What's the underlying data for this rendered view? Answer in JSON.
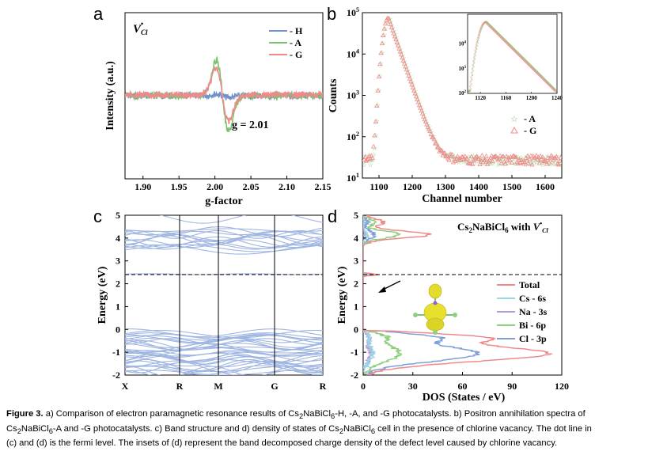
{
  "panels": {
    "a": {
      "letter": "a",
      "annotation": "V",
      "annotation_sup": "•",
      "annotation_sub": "Cl",
      "g_label": "g = 2.01",
      "chart_data": {
        "type": "line",
        "xlabel": "g-factor",
        "ylabel": "Intensity (a.u.)",
        "xlim": [
          1.875,
          2.15
        ],
        "xticks": [
          "1.90",
          "1.95",
          "2.00",
          "2.05",
          "2.10",
          "2.15"
        ],
        "legend_placement": "top-right",
        "series": [
          {
            "name": "- H",
            "color": "#6f93c9",
            "amplitude": 0.05
          },
          {
            "name": "- A",
            "color": "#7cc36f",
            "amplitude": 1.0
          },
          {
            "name": "- G",
            "color": "#f08a8a",
            "amplitude": 0.75
          }
        ],
        "signal_center_g": 2.01
      }
    },
    "b": {
      "letter": "b",
      "chart_data": {
        "type": "scatter",
        "xlabel": "Channel number",
        "ylabel": "Counts",
        "xlim": [
          1050,
          1650
        ],
        "ylim": [
          10,
          100000
        ],
        "yscale": "log",
        "xticks": [
          "1100",
          "1200",
          "1300",
          "1400",
          "1500",
          "1600"
        ],
        "yticks": [
          "10^1",
          "10^2",
          "10^3",
          "10^4",
          "10^5"
        ],
        "peak_channel": 1128,
        "peak_counts": 75000,
        "legend_placement": "bottom-right",
        "series": [
          {
            "name": "- A",
            "marker": "star",
            "color": "#7cc36f"
          },
          {
            "name": "- G",
            "marker": "triangle",
            "color": "#f08a8a"
          }
        ],
        "inset": {
          "xlim": [
            1100,
            1240
          ],
          "xticks": [
            "1120",
            "1160",
            "1200",
            "1240"
          ],
          "yticks": [
            "10^2",
            "10^3",
            "10^4"
          ]
        }
      }
    },
    "c": {
      "letter": "c",
      "chart_data": {
        "type": "line",
        "ylabel": "Energy (eV)",
        "ylim": [
          -2,
          5
        ],
        "yticks": [
          "-2",
          "-1",
          "0",
          "1",
          "2",
          "3",
          "4",
          "5"
        ],
        "kpoints": [
          "X",
          "R",
          "M",
          "G",
          "R"
        ],
        "fermi_level": 2.4,
        "band_color": "#9fb5e2",
        "valence_range": [
          -2,
          -0.1
        ],
        "conduction_range": [
          3.4,
          4.35
        ],
        "defect_level": 2.42
      }
    },
    "d": {
      "letter": "d",
      "title_main": "Cs",
      "title_sub1": "2",
      "title_mid": "NaBiCl",
      "title_sub2": "6",
      "title_with": " with ",
      "title_v": "V",
      "title_sup": "•",
      "title_sub": "Cl",
      "chart_data": {
        "type": "line",
        "xlabel": "DOS (States / eV)",
        "ylabel": "Energy (eV)",
        "xlim": [
          0,
          120
        ],
        "ylim": [
          -2,
          5
        ],
        "xticks": [
          "0",
          "30",
          "60",
          "90",
          "120"
        ],
        "yticks": [
          "-2",
          "-1",
          "0",
          "1",
          "2",
          "3",
          "4",
          "5"
        ],
        "fermi_level": 2.4,
        "legend_placement": "right",
        "series": [
          {
            "name": "Total",
            "color": "#f08a8a"
          },
          {
            "name": "Cs - 6s",
            "color": "#9ed3e8"
          },
          {
            "name": "Na - 3s",
            "color": "#b59bd6"
          },
          {
            "name": "Bi - 6p",
            "color": "#8fcf7d"
          },
          {
            "name": "Cl - 3p",
            "color": "#7e9fd9"
          }
        ]
      }
    }
  },
  "caption": {
    "lead": "Figure 3.",
    "line1": " a) Comparison of electron paramagnetic resonance results of Cs",
    "sub_2": "2",
    "nabicl": "NaBiCl",
    "sub_6": "6",
    "line1b": "-H, -A, and -G photocatalysts. b) Positron annihilation spectra of",
    "line2a": "Cs",
    "line2b": "-A and -G photocatalysts. c) Band structure and d) density of states of Cs",
    "line2c": " cell in the presence of chlorine vacancy. The dot line in",
    "line3": "(c) and (d) is the fermi level. The insets of (d) represent the band decomposed charge density of the defect level caused by chlorine vacancy."
  }
}
